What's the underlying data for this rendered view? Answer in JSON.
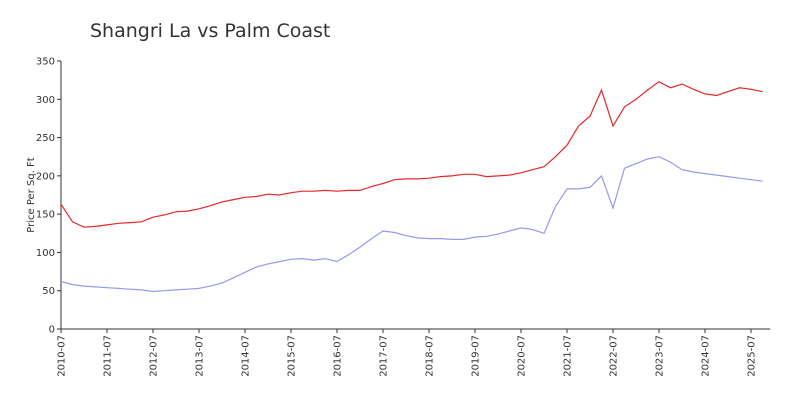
{
  "chart_data": {
    "type": "line",
    "title": "Shangri La vs Palm Coast",
    "y_label": "Price Per Sq. Ft",
    "x": [
      "2010-07",
      "2010-10",
      "2011-01",
      "2011-04",
      "2011-07",
      "2011-10",
      "2012-01",
      "2012-04",
      "2012-07",
      "2012-10",
      "2013-01",
      "2013-04",
      "2013-07",
      "2013-10",
      "2014-01",
      "2014-04",
      "2014-07",
      "2014-10",
      "2015-01",
      "2015-04",
      "2015-07",
      "2015-10",
      "2016-01",
      "2016-04",
      "2016-07",
      "2016-10",
      "2017-01",
      "2017-04",
      "2017-07",
      "2017-10",
      "2018-01",
      "2018-04",
      "2018-07",
      "2018-10",
      "2019-01",
      "2019-04",
      "2019-07",
      "2019-10",
      "2020-01",
      "2020-04",
      "2020-07",
      "2020-10",
      "2021-01",
      "2021-04",
      "2021-07",
      "2021-10",
      "2022-01",
      "2022-04",
      "2022-07",
      "2022-10",
      "2023-01",
      "2023-04",
      "2023-07",
      "2023-10",
      "2024-01",
      "2024-04",
      "2024-07",
      "2024-10",
      "2025-01",
      "2025-04",
      "2025-07",
      "2025-10"
    ],
    "series": [
      {
        "color": "#e8282b",
        "values": [
          163,
          140,
          133,
          134,
          136,
          138,
          139,
          140,
          146,
          149,
          153,
          154,
          157,
          161,
          166,
          169,
          172,
          173,
          176,
          175,
          178,
          180,
          180,
          181,
          180,
          181,
          181,
          186,
          190,
          195,
          196,
          196,
          197,
          199,
          200,
          202,
          202,
          199,
          200,
          201,
          204,
          208,
          212,
          225,
          240,
          265,
          278,
          312,
          265,
          290,
          300,
          312,
          323,
          315,
          320,
          313,
          307,
          305,
          310,
          315,
          313,
          310
        ]
      },
      {
        "color": "#9999ee",
        "values": [
          62,
          58,
          56,
          55,
          54,
          53,
          52,
          51,
          49,
          50,
          51,
          52,
          53,
          56,
          60,
          67,
          74,
          81,
          85,
          88,
          91,
          92,
          90,
          92,
          88,
          97,
          107,
          118,
          128,
          126,
          122,
          119,
          118,
          118,
          117,
          117,
          120,
          121,
          124,
          128,
          132,
          130,
          125,
          160,
          183,
          183,
          185,
          200,
          158,
          210,
          216,
          222,
          225,
          218,
          208,
          205,
          203,
          201,
          199,
          197,
          195,
          193
        ]
      }
    ],
    "xlim": [
      "2010-07",
      "2025-12"
    ],
    "xticks": [
      "2010-07",
      "2011-07",
      "2012-07",
      "2013-07",
      "2014-07",
      "2015-07",
      "2016-07",
      "2017-07",
      "2018-07",
      "2019-07",
      "2020-07",
      "2021-07",
      "2022-07",
      "2023-07",
      "2024-07",
      "2025-07"
    ],
    "ylim": [
      0,
      350
    ],
    "yticks": [
      0,
      50,
      100,
      150,
      200,
      250,
      300,
      350
    ]
  }
}
